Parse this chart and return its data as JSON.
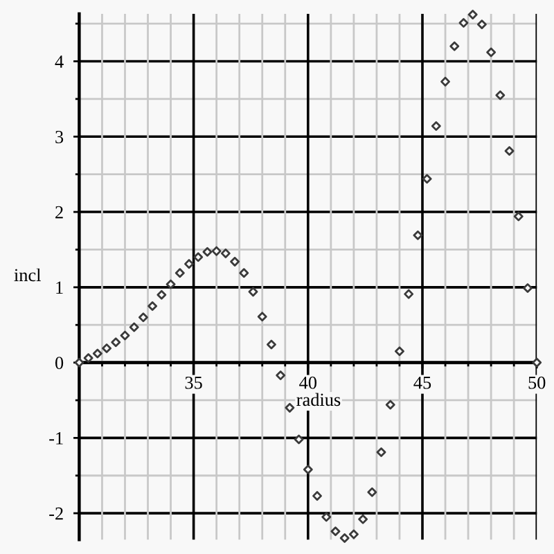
{
  "chart_data": {
    "type": "scatter",
    "xlabel": "radius",
    "ylabel": "incl",
    "x": [
      30,
      30.4,
      30.8,
      31.2,
      31.6,
      32,
      32.4,
      32.8,
      33.2,
      33.6,
      34,
      34.4,
      34.8,
      35.2,
      35.6,
      36,
      36.4,
      36.8,
      37.2,
      37.6,
      38,
      38.4,
      38.8,
      39.2,
      39.6,
      40,
      40.4,
      40.8,
      41.2,
      41.6,
      42,
      42.4,
      42.8,
      43.2,
      43.6,
      44,
      44.4,
      44.8,
      45.2,
      45.6,
      46,
      46.4,
      46.8,
      47.2,
      47.6,
      48,
      48.4,
      48.8,
      49.2,
      49.6,
      50
    ],
    "series": [
      {
        "color": "#3a3a3a",
        "values": [
          0,
          0.06,
          0.12,
          0.19,
          0.27,
          0.36,
          0.47,
          0.6,
          0.75,
          0.9,
          1.04,
          1.19,
          1.31,
          1.4,
          1.47,
          1.48,
          1.45,
          1.34,
          1.19,
          0.94,
          0.61,
          0.24,
          -0.17,
          -0.6,
          -1.02,
          -1.42,
          -1.77,
          -2.05,
          -2.24,
          -2.33,
          -2.28,
          -2.08,
          -1.72,
          -1.19,
          -0.56,
          0.15,
          0.91,
          1.69,
          2.44,
          3.14,
          3.73,
          4.2,
          4.51,
          4.62,
          4.49,
          4.12,
          3.55,
          2.81,
          1.94,
          0.99,
          0
        ]
      }
    ],
    "xlim": [
      30,
      50
    ],
    "ylim": [
      -2.35,
      4.63
    ],
    "xticks": [
      {
        "value": 31,
        "label": null
      },
      {
        "value": 32,
        "label": null
      },
      {
        "value": 33,
        "label": null
      },
      {
        "value": 34,
        "label": null
      },
      35,
      {
        "value": 36,
        "label": null
      },
      {
        "value": 37,
        "label": null
      },
      {
        "value": 38,
        "label": null
      },
      {
        "value": 39,
        "label": null
      },
      40,
      {
        "value": 41,
        "label": null
      },
      {
        "value": 42,
        "label": null
      },
      {
        "value": 43,
        "label": null
      },
      {
        "value": 44,
        "label": null
      },
      45,
      {
        "value": 46,
        "label": null
      },
      {
        "value": 47,
        "label": null
      },
      {
        "value": 48,
        "label": null
      },
      {
        "value": 49,
        "label": null
      },
      50
    ],
    "yticks": [
      -2,
      {
        "value": -1.5,
        "label": null
      },
      -1,
      {
        "value": -0.5,
        "label": null
      },
      0,
      {
        "value": 0.5,
        "label": null
      },
      1,
      {
        "value": 1.5,
        "label": null
      },
      2,
      {
        "value": 2.5,
        "label": null
      },
      3,
      {
        "value": 3.5,
        "label": null
      },
      4,
      {
        "value": 4.5,
        "label": null
      }
    ],
    "grid": true,
    "marker": "diamond"
  }
}
